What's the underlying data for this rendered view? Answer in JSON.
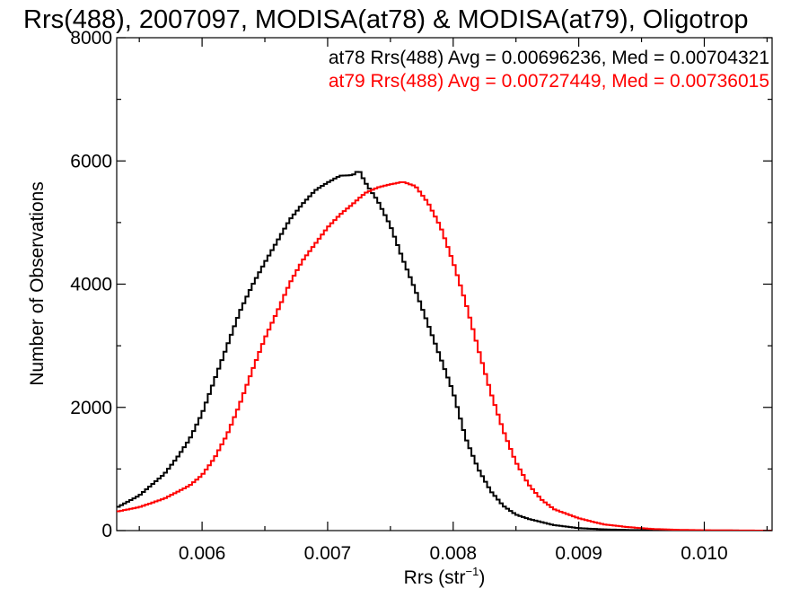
{
  "chart_data": {
    "type": "line",
    "title": "Rrs(488), 2007097, MODISA(at78) & MODISA(at79), Oligotrop",
    "xlabel_main": "Rrs (str",
    "xlabel_sup": "−1",
    "xlabel_close": ")",
    "ylabel": "Number of Observations",
    "xlim": [
      0.00532,
      0.01054
    ],
    "ylim": [
      0,
      8000
    ],
    "x_ticks": [
      0.006,
      0.007,
      0.008,
      0.009,
      0.01
    ],
    "x_tick_labels": [
      "0.006",
      "0.007",
      "0.008",
      "0.009",
      "0.010"
    ],
    "y_ticks": [
      0,
      2000,
      4000,
      6000,
      8000
    ],
    "y_tick_labels": [
      "0",
      "2000",
      "4000",
      "6000",
      "8000"
    ],
    "grid": false,
    "legend_position": "top-right",
    "series": [
      {
        "name": "at78 Rrs(488) Avg = 0.00696236, Med = 0.00704321",
        "color": "#000000",
        "x": [
          0.0053,
          0.0055,
          0.0057,
          0.0058,
          0.0059,
          0.006,
          0.0061,
          0.0062,
          0.0063,
          0.0064,
          0.0065,
          0.0066,
          0.0067,
          0.0068,
          0.0069,
          0.007,
          0.0071,
          0.0072,
          0.00725,
          0.0073,
          0.0074,
          0.0075,
          0.0076,
          0.0077,
          0.0078,
          0.0079,
          0.008,
          0.0081,
          0.0082,
          0.0083,
          0.0084,
          0.0085,
          0.0086,
          0.0088,
          0.009,
          0.0092,
          0.0094,
          0.0096,
          0.01,
          0.0105
        ],
        "y": [
          350,
          570,
          920,
          1180,
          1480,
          1900,
          2450,
          3000,
          3550,
          3980,
          4350,
          4700,
          5050,
          5300,
          5520,
          5650,
          5760,
          5770,
          5850,
          5650,
          5350,
          4950,
          4400,
          3900,
          3350,
          2800,
          2250,
          1500,
          1000,
          640,
          400,
          260,
          190,
          90,
          40,
          20,
          10,
          5,
          2,
          0
        ]
      },
      {
        "name": "at79 Rrs(488) Avg = 0.00727449, Med = 0.00736015",
        "color": "#ff0000",
        "x": [
          0.0053,
          0.0055,
          0.0057,
          0.0059,
          0.006,
          0.0061,
          0.0062,
          0.0063,
          0.0064,
          0.0065,
          0.0066,
          0.0067,
          0.0068,
          0.0069,
          0.007,
          0.0071,
          0.0072,
          0.0073,
          0.0074,
          0.0075,
          0.0076,
          0.0077,
          0.0078,
          0.0079,
          0.008,
          0.0081,
          0.0082,
          0.0083,
          0.0084,
          0.0085,
          0.0086,
          0.0087,
          0.0088,
          0.009,
          0.0092,
          0.0094,
          0.0096,
          0.0098,
          0.01,
          0.0105
        ],
        "y": [
          300,
          380,
          520,
          730,
          900,
          1180,
          1560,
          2050,
          2600,
          3120,
          3560,
          4020,
          4380,
          4650,
          4920,
          5130,
          5300,
          5480,
          5570,
          5620,
          5660,
          5590,
          5320,
          4930,
          4360,
          3700,
          2950,
          2240,
          1620,
          1110,
          750,
          510,
          350,
          200,
          100,
          55,
          25,
          12,
          5,
          0
        ]
      }
    ]
  }
}
